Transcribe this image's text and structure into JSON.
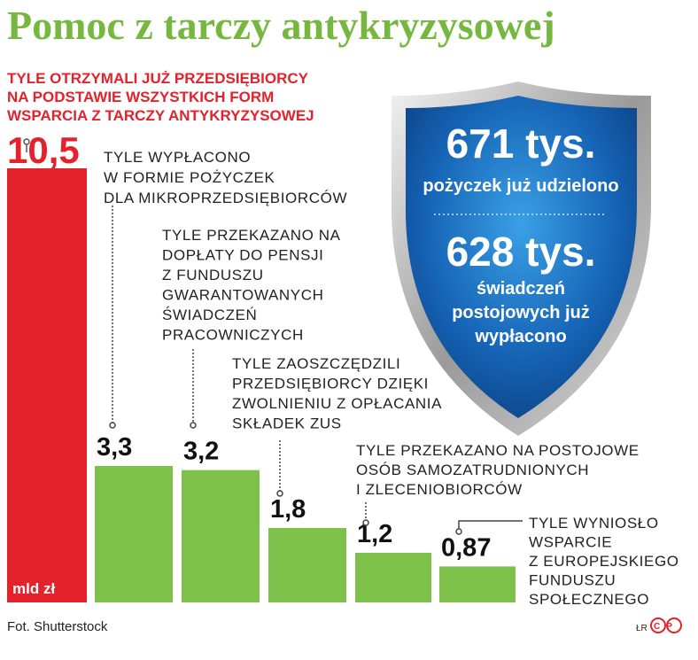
{
  "chart_data": {
    "type": "bar",
    "title": "Pomoc z tarczy antykryzysowej",
    "unit": "mld zł",
    "categories": [
      [
        "TYLE OTRZYMALI JUŻ PRZEDSIĘBIORCY",
        "NA PODSTAWIE WSZYSTKICH FORM",
        "WSPARCIA Z TARCZY ANTYKRYZYSOWEJ"
      ],
      [
        "TYLE WYPŁACONO",
        "W FORMIE POŻYCZEK",
        "DLA MIKROPRZEDSIĘBIORCÓW"
      ],
      [
        "TYLE PRZEKAZANO NA",
        "DOPŁATY DO PENSJI",
        "Z FUNDUSZU",
        "GWARANTOWANYCH",
        "ŚWIADCZEŃ",
        "PRACOWNICZYCH"
      ],
      [
        "TYLE ZAOSZCZĘDZILI",
        "PRZEDSIĘBIORCY DZIĘKI",
        "ZWOLNIENIU Z OPŁACANIA",
        "SKŁADEK ZUS"
      ],
      [
        "TYLE PRZEKAZANO NA POSTOJOWE",
        "OSÓB SAMOZATRUDNIONYCH",
        "I ZLECENIOBIORCÓW"
      ],
      [
        "TYLE WYNIOSŁO",
        "WSPARCIE",
        "Z EUROPEJSKIEGO",
        "FUNDUSZU",
        "SPOŁECZNEGO"
      ]
    ],
    "values": [
      10.5,
      3.3,
      3.2,
      1.8,
      1.2,
      0.87
    ],
    "value_labels": [
      "10,5",
      "3,3",
      "3,2",
      "1,8",
      "1,2",
      "0,87"
    ],
    "colors": [
      "#e3222b",
      "#7dc14b",
      "#7dc14b",
      "#7dc14b",
      "#7dc14b",
      "#7dc14b"
    ],
    "shield": {
      "loans_value": "671 tys.",
      "loans_text": "pożyczek już udzielono",
      "benefits_value": "628 tys.",
      "benefits_text": [
        "świadczeń",
        "postojowych już",
        "wypłacono"
      ]
    },
    "source": "Fot. Shutterstock",
    "author": "ŁR",
    "logo": "CP"
  }
}
